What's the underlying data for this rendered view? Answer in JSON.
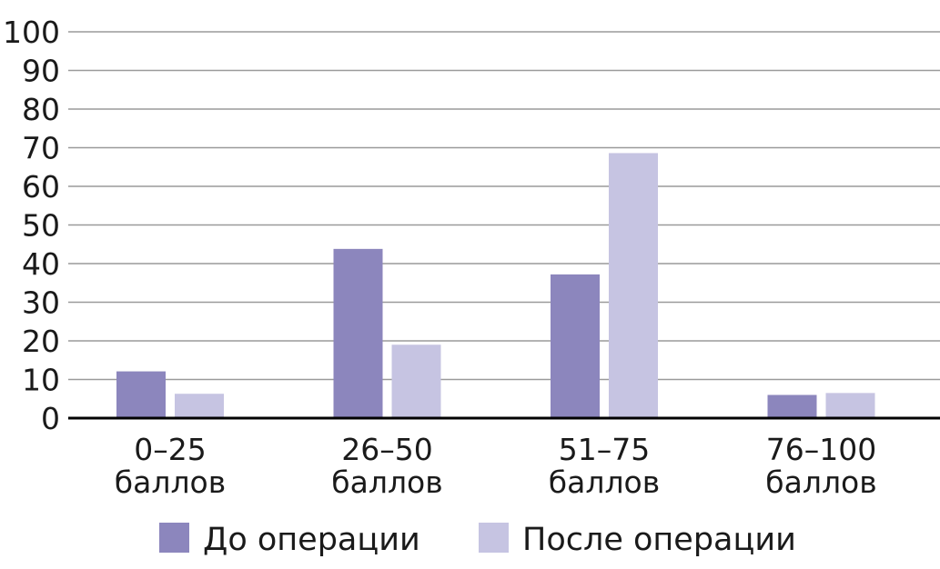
{
  "chart_data": {
    "type": "bar",
    "title": "",
    "xlabel": "",
    "ylabel": "",
    "ylim": [
      0,
      100
    ],
    "yticks": [
      0,
      10,
      20,
      30,
      40,
      50,
      60,
      70,
      80,
      90,
      100
    ],
    "grid": true,
    "categories": [
      [
        "0–25",
        "баллов"
      ],
      [
        "26–50",
        "баллов"
      ],
      [
        "51–75",
        "баллов"
      ],
      [
        "76–100",
        "баллов"
      ]
    ],
    "series": [
      {
        "name": "До операции",
        "color": "#8c86bd",
        "values": [
          12.1,
          43.8,
          37.2,
          6.0
        ]
      },
      {
        "name": "После операции",
        "color": "#c6c4e2",
        "values": [
          6.3,
          19.0,
          68.6,
          6.5
        ]
      }
    ],
    "legend_position": "bottom"
  }
}
